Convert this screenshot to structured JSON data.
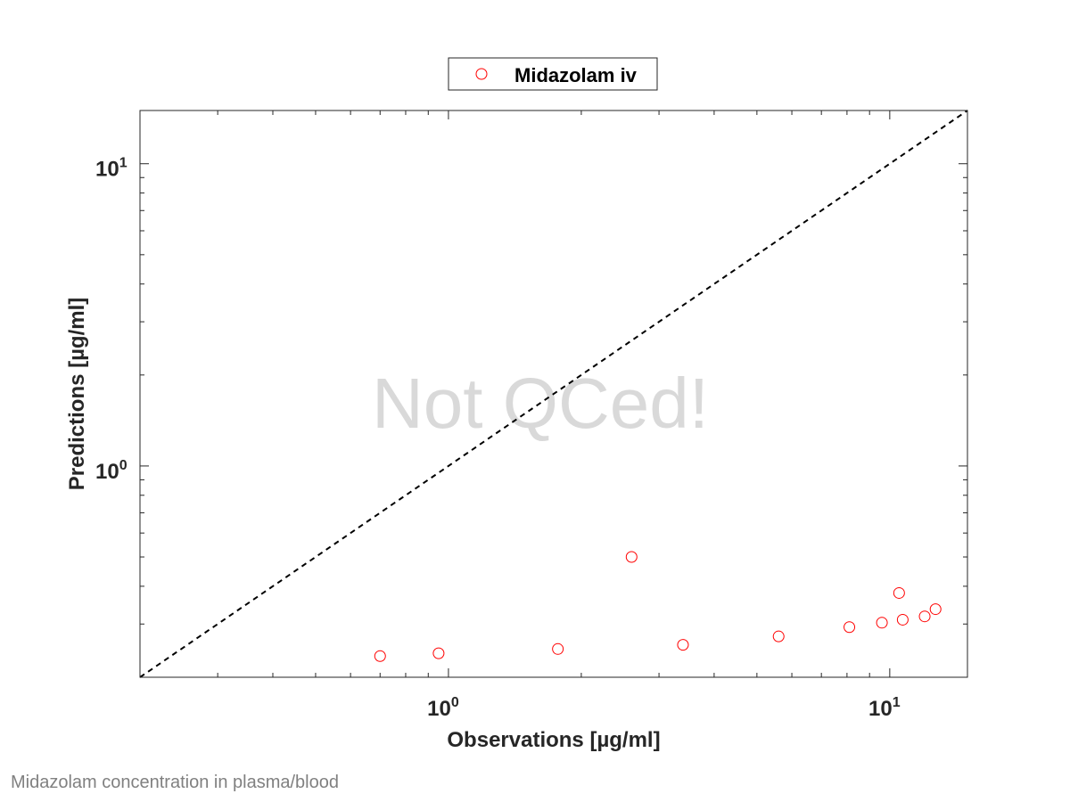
{
  "colors": {
    "marker": "#ff0000",
    "identity_line": "#000000",
    "axes": "#262626",
    "watermark": "#d9d9d9",
    "caption": "#808080"
  },
  "watermark": "Not QCed!",
  "caption": "Midazolam concentration in plasma/blood",
  "chart_data": {
    "type": "scatter",
    "title": "",
    "xlabel": "Observations [µg/ml]",
    "ylabel": "Predictions [µg/ml]",
    "xscale": "log",
    "yscale": "log",
    "xlim": [
      0.2,
      15
    ],
    "ylim": [
      0.2,
      15
    ],
    "xticks": [
      {
        "base": "10",
        "exp": "0",
        "value": 1
      },
      {
        "base": "10",
        "exp": "1",
        "value": 10
      }
    ],
    "yticks": [
      {
        "base": "10",
        "exp": "0",
        "value": 1
      },
      {
        "base": "10",
        "exp": "1",
        "value": 10
      }
    ],
    "grid": false,
    "legend_position": "top-center",
    "identity_line": true,
    "series": [
      {
        "name": "Midazolam iv",
        "marker": "open-circle",
        "color": "#ff0000",
        "points": [
          {
            "x": 0.7,
            "y": 0.235
          },
          {
            "x": 0.95,
            "y": 0.24
          },
          {
            "x": 1.77,
            "y": 0.248
          },
          {
            "x": 2.6,
            "y": 0.5
          },
          {
            "x": 3.4,
            "y": 0.256
          },
          {
            "x": 5.6,
            "y": 0.273
          },
          {
            "x": 8.1,
            "y": 0.293
          },
          {
            "x": 9.6,
            "y": 0.303
          },
          {
            "x": 10.5,
            "y": 0.38
          },
          {
            "x": 10.7,
            "y": 0.31
          },
          {
            "x": 12.0,
            "y": 0.318
          },
          {
            "x": 12.7,
            "y": 0.336
          }
        ]
      }
    ]
  }
}
